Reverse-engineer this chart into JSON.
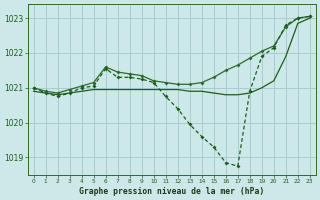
{
  "background_color": "#cce8e8",
  "grid_color": "#aacccc",
  "dark_green": "#1e5c1e",
  "mid_green": "#2d6b2d",
  "title": "Graphe pression niveau de la mer (hPa)",
  "xlim": [
    -0.5,
    23.5
  ],
  "ylim": [
    1018.5,
    1023.4
  ],
  "yticks": [
    1019,
    1020,
    1021,
    1022,
    1023
  ],
  "xticks": [
    0,
    1,
    2,
    3,
    4,
    5,
    6,
    7,
    8,
    9,
    10,
    11,
    12,
    13,
    14,
    15,
    16,
    17,
    18,
    19,
    20,
    21,
    22,
    23
  ],
  "s1_x": [
    0,
    1,
    2,
    3,
    4,
    5,
    6,
    7,
    8,
    9,
    10,
    11,
    12,
    13,
    14,
    15,
    16,
    17,
    18,
    19,
    20,
    21,
    22,
    23
  ],
  "s1_y": [
    1021.0,
    1020.85,
    1020.75,
    1020.85,
    1021.0,
    1021.05,
    1021.55,
    1021.3,
    1021.3,
    1021.25,
    1021.15,
    1020.75,
    1020.4,
    1019.95,
    1019.6,
    1019.3,
    1018.85,
    1018.75,
    1020.9,
    1021.9,
    1022.15,
    1022.8,
    1023.0,
    1023.05
  ],
  "s2_x": [
    0,
    1,
    2,
    3,
    4,
    5,
    6,
    7,
    8,
    9,
    10,
    11,
    12,
    13,
    14,
    15,
    16,
    17,
    18,
    19,
    20,
    21,
    22,
    23
  ],
  "s2_y": [
    1020.9,
    1020.85,
    1020.8,
    1020.85,
    1020.9,
    1020.95,
    1020.95,
    1020.95,
    1020.95,
    1020.95,
    1020.95,
    1020.95,
    1020.95,
    1020.9,
    1020.9,
    1020.85,
    1020.8,
    1020.8,
    1020.85,
    1021.0,
    1021.2,
    1021.9,
    1022.85,
    1023.0
  ],
  "s3_x": [
    0,
    1,
    2,
    3,
    4,
    5,
    6,
    7,
    8,
    9,
    10,
    11,
    12,
    13,
    14,
    15,
    16,
    17,
    18,
    19,
    20,
    21,
    22,
    23
  ],
  "s3_y": [
    1021.0,
    1020.9,
    1020.85,
    1020.95,
    1021.05,
    1021.15,
    1021.6,
    1021.45,
    1021.4,
    1021.35,
    1021.2,
    1021.15,
    1021.1,
    1021.1,
    1021.15,
    1021.3,
    1021.5,
    1021.65,
    1021.85,
    1022.05,
    1022.2,
    1022.75,
    1023.0,
    1023.05
  ]
}
